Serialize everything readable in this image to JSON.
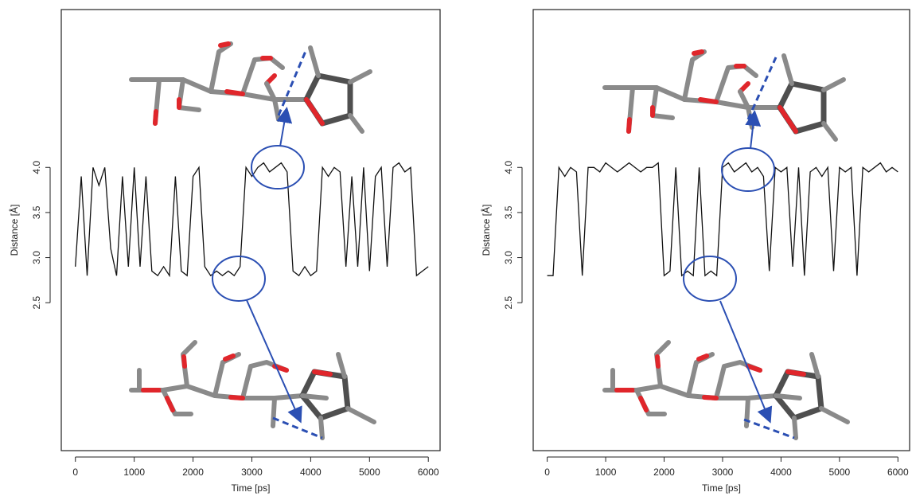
{
  "chart_data": [
    {
      "type": "line",
      "x_label": "Time [ps]",
      "y_label": "Distance [Å]",
      "color": "#111111",
      "xlim": [
        -240,
        6200
      ],
      "ylim": [
        0.86,
        5.75
      ],
      "xticks": [
        0,
        1000,
        2000,
        3000,
        4000,
        5000,
        6000
      ],
      "yticks": [
        2.5,
        {
          "value": 3,
          "label": "3.0"
        },
        3.5,
        {
          "value": 4,
          "label": "4.0"
        }
      ],
      "x": [
        0,
        100,
        200,
        300,
        400,
        500,
        600,
        700,
        800,
        900,
        1000,
        1100,
        1200,
        1300,
        1400,
        1500,
        1600,
        1700,
        1800,
        1900,
        2000,
        2100,
        2200,
        2300,
        2400,
        2500,
        2600,
        2700,
        2800,
        2900,
        3000,
        3100,
        3200,
        3300,
        3400,
        3500,
        3600,
        3700,
        3800,
        3900,
        4000,
        4100,
        4200,
        4300,
        4400,
        4500,
        4600,
        4700,
        4800,
        4900,
        5000,
        5100,
        5200,
        5300,
        5400,
        5500,
        5600,
        5700,
        5800,
        5900,
        6000
      ],
      "values": [
        2.9,
        3.9,
        2.8,
        4.0,
        3.8,
        4.0,
        3.1,
        2.8,
        3.9,
        2.9,
        4.0,
        2.9,
        3.9,
        2.85,
        2.8,
        2.9,
        2.8,
        3.9,
        2.85,
        2.8,
        3.9,
        4.0,
        2.9,
        2.8,
        2.85,
        2.8,
        2.85,
        2.8,
        2.9,
        4.0,
        3.9,
        4.0,
        4.05,
        3.95,
        4.0,
        4.05,
        3.95,
        2.85,
        2.8,
        2.9,
        2.8,
        2.85,
        4.0,
        3.9,
        4.0,
        3.95,
        2.9,
        3.9,
        2.9,
        4.0,
        2.85,
        3.9,
        4.0,
        2.9,
        4.0,
        4.05,
        3.95,
        4.0,
        2.8,
        2.85,
        2.9
      ]
    },
    {
      "type": "line",
      "x_label": "Time [ps]",
      "y_label": "Distance [Å]",
      "color": "#111111",
      "xlim": [
        -240,
        6200
      ],
      "ylim": [
        0.86,
        5.75
      ],
      "xticks": [
        0,
        1000,
        2000,
        3000,
        4000,
        5000,
        6000
      ],
      "yticks": [
        2.5,
        {
          "value": 3,
          "label": "3.0"
        },
        3.5,
        {
          "value": 4,
          "label": "4.0"
        }
      ],
      "x": [
        0,
        100,
        200,
        300,
        400,
        500,
        600,
        700,
        800,
        900,
        1000,
        1100,
        1200,
        1300,
        1400,
        1500,
        1600,
        1700,
        1800,
        1900,
        2000,
        2100,
        2200,
        2300,
        2400,
        2500,
        2600,
        2700,
        2800,
        2900,
        3000,
        3100,
        3200,
        3300,
        3400,
        3500,
        3600,
        3700,
        3800,
        3900,
        4000,
        4100,
        4200,
        4300,
        4400,
        4500,
        4600,
        4700,
        4800,
        4900,
        5000,
        5100,
        5200,
        5300,
        5400,
        5500,
        5600,
        5700,
        5800,
        5900,
        6000
      ],
      "values": [
        2.8,
        2.8,
        4.0,
        3.9,
        4.0,
        3.95,
        2.8,
        4.0,
        4.0,
        3.95,
        4.05,
        4.0,
        3.95,
        4.0,
        4.05,
        4.0,
        3.95,
        4.0,
        4.0,
        4.05,
        2.8,
        2.85,
        4.0,
        2.8,
        2.85,
        2.8,
        4.0,
        2.8,
        2.85,
        2.8,
        4.0,
        4.05,
        3.95,
        4.0,
        4.05,
        3.95,
        4.0,
        3.9,
        2.85,
        4.0,
        3.95,
        4.0,
        2.9,
        4.0,
        2.8,
        3.95,
        4.0,
        3.9,
        4.0,
        2.85,
        4.0,
        3.95,
        4.0,
        2.8,
        4.0,
        3.95,
        4.0,
        4.05,
        3.95,
        4.0,
        3.95
      ]
    }
  ]
}
